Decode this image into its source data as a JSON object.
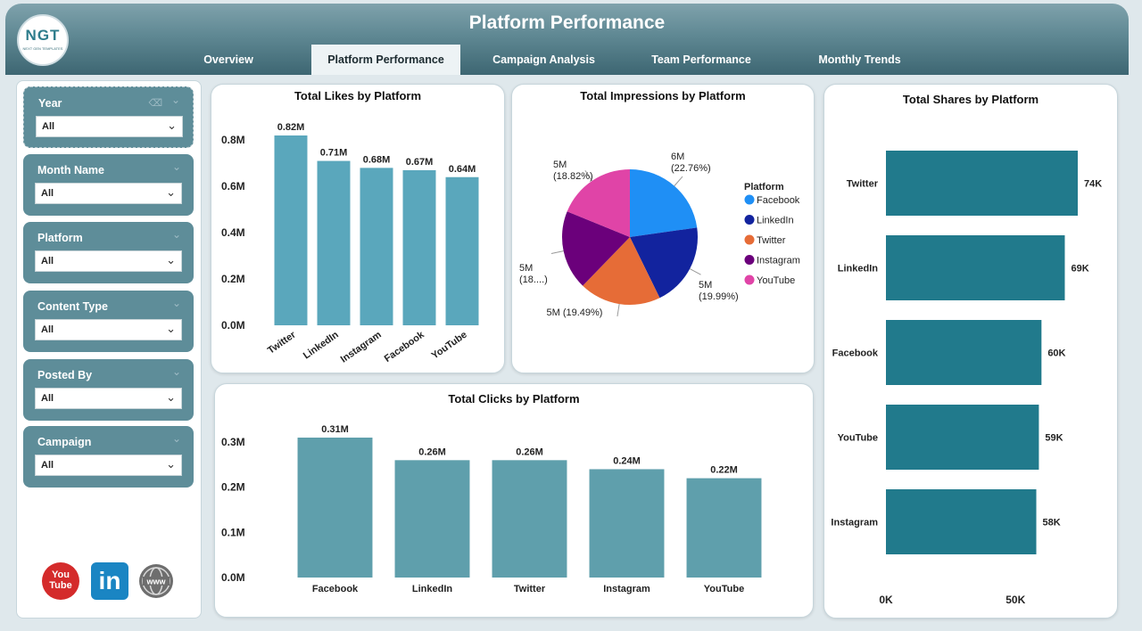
{
  "header": {
    "logo_mark": "NGT",
    "logo_sub": "NEXT GEN TEMPLATES",
    "title": "Platform Performance",
    "tabs": [
      {
        "label": "Overview"
      },
      {
        "label": "Platform Performance",
        "active": true
      },
      {
        "label": "Campaign Analysis"
      },
      {
        "label": "Team Performance"
      },
      {
        "label": "Monthly Trends"
      }
    ]
  },
  "filters": [
    {
      "label": "Year",
      "value": "All"
    },
    {
      "label": "Month Name",
      "value": "All"
    },
    {
      "label": "Platform",
      "value": "All"
    },
    {
      "label": "Content Type",
      "value": "All"
    },
    {
      "label": "Posted By",
      "value": "All"
    },
    {
      "label": "Campaign",
      "value": "All"
    }
  ],
  "social_icons": {
    "youtube": {
      "line1": "You",
      "line2": "Tube"
    },
    "linkedin": {
      "text": "in"
    },
    "web": {
      "text": "www"
    }
  },
  "colors": {
    "bar_likes": "#5aa7bc",
    "bar_clicks": "#5f9fac",
    "bar_shares": "#217a8c",
    "facebook": "#1f8ff5",
    "linkedin": "#12239e",
    "twitter": "#e66c37",
    "instagram": "#6b007b",
    "youtube": "#e044a7"
  },
  "chart_data": [
    {
      "id": "likes",
      "type": "bar",
      "title": "Total Likes by Platform",
      "categories": [
        "Twitter",
        "LinkedIn",
        "Instagram",
        "Facebook",
        "YouTube"
      ],
      "values": [
        0.82,
        0.71,
        0.68,
        0.67,
        0.64
      ],
      "data_labels": [
        "0.82M",
        "0.71M",
        "0.68M",
        "0.67M",
        "0.64M"
      ],
      "yticks": [
        0.0,
        0.2,
        0.4,
        0.6,
        0.8
      ],
      "ytick_labels": [
        "0.0M",
        "0.2M",
        "0.4M",
        "0.6M",
        "0.8M"
      ],
      "ylim": [
        0,
        0.82
      ],
      "unit": "M"
    },
    {
      "id": "impressions",
      "type": "pie",
      "title": "Total Impressions by Platform",
      "legend_title": "Platform",
      "legend_position": "right",
      "categories": [
        "Facebook",
        "LinkedIn",
        "Twitter",
        "Instagram",
        "YouTube"
      ],
      "values": [
        22.76,
        19.99,
        19.49,
        18.94,
        18.82
      ],
      "data_labels": [
        {
          "line1": "6M",
          "line2": "(22.76%)"
        },
        {
          "line1": "5M",
          "line2": "(19.99%)"
        },
        {
          "line1": "5M (19.49%)",
          "line2": ""
        },
        {
          "line1": "5M",
          "line2": "(18....)"
        },
        {
          "line1": "5M",
          "line2": "(18.82%)"
        }
      ]
    },
    {
      "id": "clicks",
      "type": "bar",
      "title": "Total Clicks by Platform",
      "categories": [
        "Facebook",
        "LinkedIn",
        "Twitter",
        "Instagram",
        "YouTube"
      ],
      "values": [
        0.31,
        0.26,
        0.26,
        0.24,
        0.22
      ],
      "data_labels": [
        "0.31M",
        "0.26M",
        "0.26M",
        "0.24M",
        "0.22M"
      ],
      "yticks": [
        0.0,
        0.1,
        0.2,
        0.3
      ],
      "ytick_labels": [
        "0.0M",
        "0.1M",
        "0.2M",
        "0.3M"
      ],
      "ylim": [
        0,
        0.31
      ],
      "unit": "M"
    },
    {
      "id": "shares",
      "type": "bar",
      "orientation": "horizontal",
      "title": "Total Shares by Platform",
      "categories": [
        "Twitter",
        "LinkedIn",
        "Facebook",
        "YouTube",
        "Instagram"
      ],
      "values": [
        74,
        69,
        60,
        59,
        58
      ],
      "data_labels": [
        "74K",
        "69K",
        "60K",
        "59K",
        "58K"
      ],
      "xticks": [
        0,
        50
      ],
      "xtick_labels": [
        "0K",
        "50K"
      ],
      "xlim": [
        0,
        74
      ],
      "unit": "K"
    }
  ]
}
